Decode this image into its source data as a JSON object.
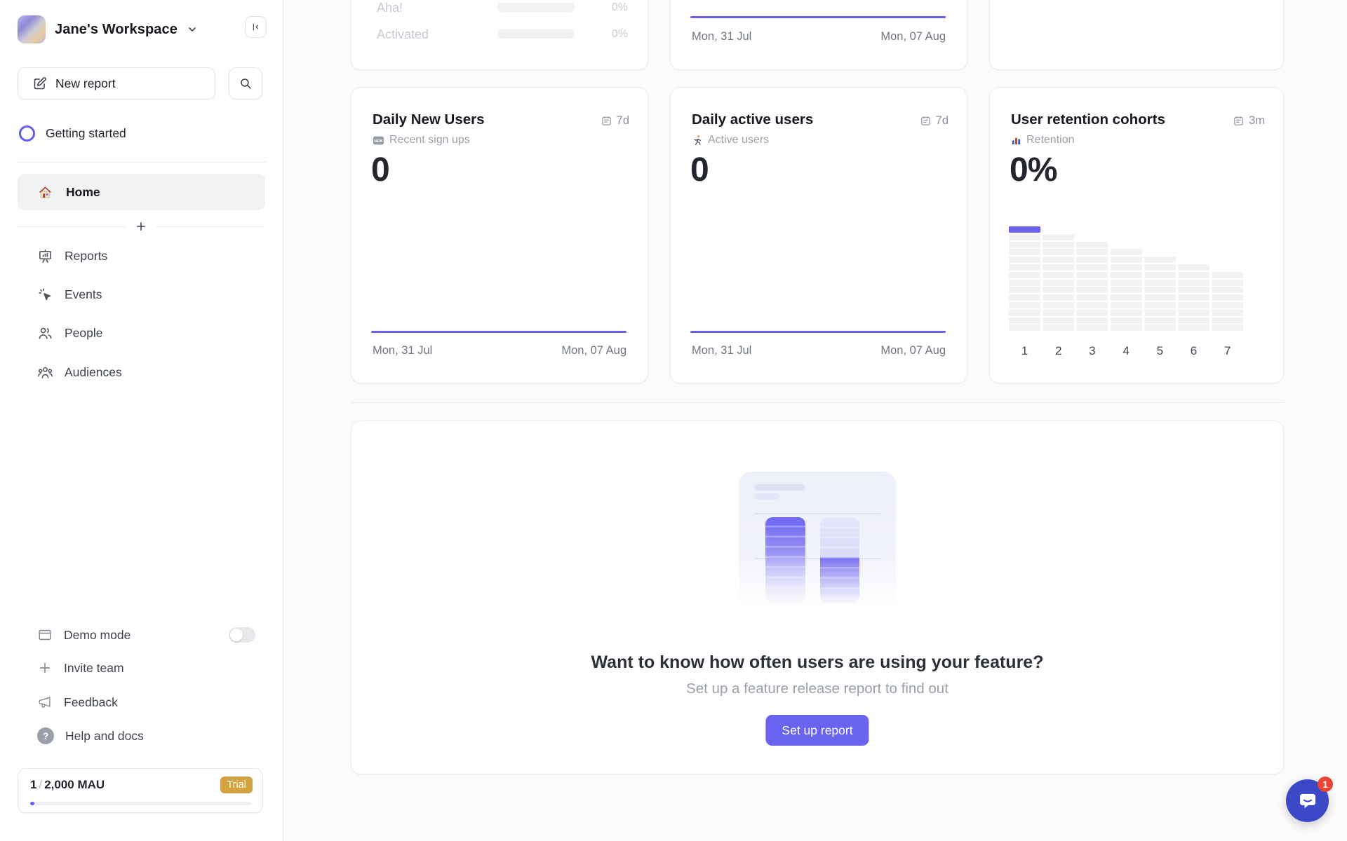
{
  "colors": {
    "accent_purple": "#6760ef",
    "cohort_highlight": "#6b62f0",
    "trial_gold": "#d2a140",
    "intercom_blue": "#3b49c6",
    "notification_red": "#eb4438"
  },
  "icons": {
    "collapse_sidebar": "bar-with-left-arrow",
    "new_report": "pencil-square",
    "search": "magnifier",
    "getting_started": "progress-ring",
    "home": "house",
    "reports": "presentation-board",
    "events": "cursor-click",
    "people": "two-users",
    "audiences": "user-group",
    "demo_mode": "browser-window",
    "invite_team": "plus",
    "feedback": "megaphone",
    "help": "question-circle",
    "range": "calendar",
    "recent_sign_ups": "new-badge",
    "active_users": "runner",
    "retention": "bar-chart",
    "intercom": "chat-bubble"
  },
  "sidebar": {
    "workspace_name": "Jane's Workspace",
    "new_report_label": "New report",
    "getting_started_label": "Getting started",
    "nav": {
      "home": "Home",
      "reports": "Reports",
      "events": "Events",
      "people": "People",
      "audiences": "Audiences"
    },
    "footer": {
      "demo_mode": "Demo mode",
      "invite_team": "Invite team",
      "feedback": "Feedback",
      "help": "Help and docs"
    },
    "usage": {
      "current": "1",
      "separator": "/",
      "limit": "2,000 MAU",
      "badge": "Trial",
      "progress_pct": 2
    }
  },
  "cards": {
    "dates": {
      "start": "Mon, 31 Jul",
      "end": "Mon, 07 Aug"
    },
    "funnel": {
      "rows": [
        {
          "label": "Aha!",
          "value": "0%"
        },
        {
          "label": "Activated",
          "value": "0%"
        }
      ]
    },
    "daily_new_users": {
      "title": "Daily New Users",
      "range": "7d",
      "subtitle": "Recent sign ups",
      "value": "0"
    },
    "daily_active_users": {
      "title": "Daily active users",
      "range": "7d",
      "subtitle": "Active users",
      "value": "0"
    },
    "retention": {
      "title": "User retention cohorts",
      "range": "3m",
      "subtitle": "Retention",
      "value": "0%",
      "cohort": {
        "labels": [
          "1",
          "2",
          "3",
          "4",
          "5",
          "6",
          "7"
        ],
        "rows_per_column": [
          14,
          13,
          12,
          11,
          10,
          9,
          8
        ],
        "highlight_first_cell": true
      }
    },
    "cta": {
      "title": "Want to know how often users are using your feature?",
      "subtitle": "Set up a feature release report to find out",
      "button": "Set up report"
    }
  },
  "intercom": {
    "badge": "1"
  }
}
